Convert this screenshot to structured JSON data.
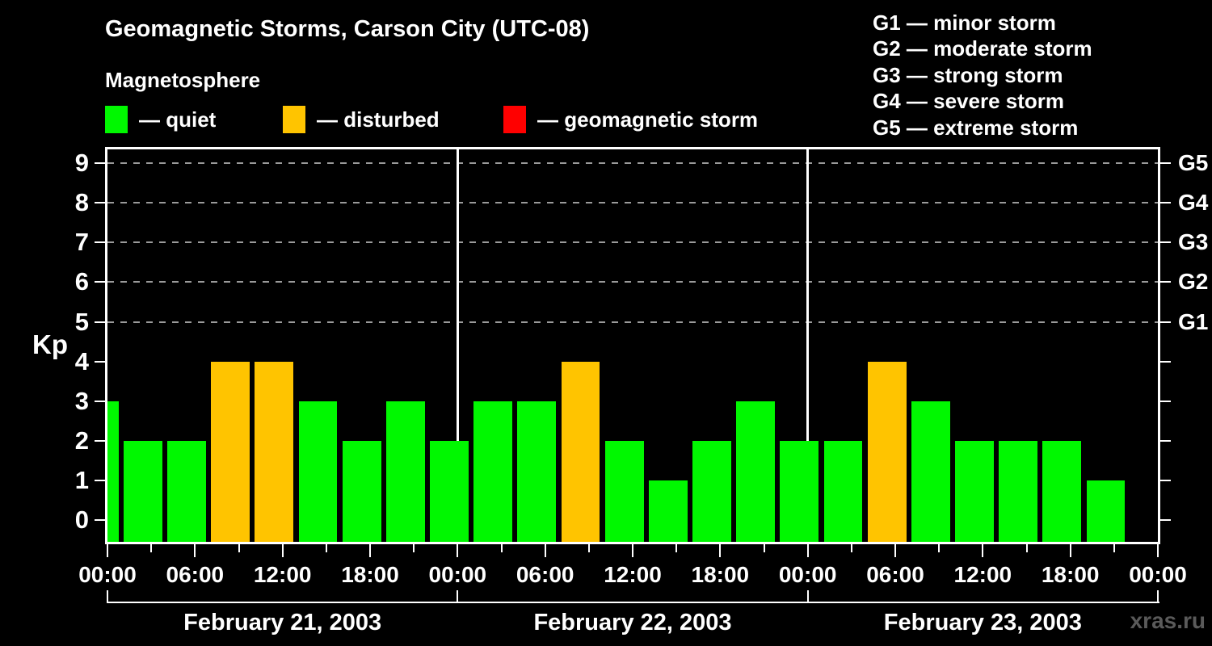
{
  "title": "Geomagnetic Storms, Carson City (UTC-08)",
  "subtitle": "Magnetosphere",
  "series_legend": [
    {
      "name": "quiet",
      "label": "— quiet",
      "color": "#00f800"
    },
    {
      "name": "disturbed",
      "label": "— disturbed",
      "color": "#ffc400"
    },
    {
      "name": "geomagnetic-storm",
      "label": "— geomagnetic storm",
      "color": "#ff0000"
    }
  ],
  "storm_scale_legend": [
    "G1 — minor storm",
    "G2 — moderate storm",
    "G3 — strong storm",
    "G4 — severe storm",
    "G5 — extreme storm"
  ],
  "watermark": "xras.ru",
  "chart_data": {
    "type": "bar",
    "title": "Geomagnetic Storms, Carson City (UTC-08)",
    "subtitle": "Magnetosphere",
    "ylabel": "Kp",
    "ylim": [
      -0.55,
      9.35
    ],
    "yticks": [
      0,
      1,
      2,
      3,
      4,
      5,
      6,
      7,
      8,
      9
    ],
    "grid_levels": [
      5,
      6,
      7,
      8,
      9
    ],
    "grid_style": "dashed",
    "right_axis": [
      {
        "level": 5,
        "label": "G1"
      },
      {
        "level": 6,
        "label": "G2"
      },
      {
        "level": 7,
        "label": "G3"
      },
      {
        "level": 8,
        "label": "G4"
      },
      {
        "level": 9,
        "label": "G5"
      }
    ],
    "total_hours": 72,
    "bar_interval_hours": 3,
    "x_minor_tick_hours": 3,
    "x_tick_label_interval_hours": 6,
    "x_tick_labels": [
      "00:00",
      "06:00",
      "12:00",
      "18:00",
      "00:00",
      "06:00",
      "12:00",
      "18:00",
      "00:00",
      "06:00",
      "12:00",
      "18:00",
      "00:00"
    ],
    "days": [
      "February 21, 2003",
      "February 22, 2003",
      "February 23, 2003"
    ],
    "kp_values": [
      3,
      2,
      2,
      4,
      4,
      3,
      2,
      3,
      2,
      3,
      3,
      4,
      2,
      1,
      2,
      3,
      2,
      2,
      4,
      3,
      2,
      2,
      2,
      1
    ],
    "color_rule": {
      "quiet_max": 3,
      "disturbed": 4,
      "storm_min": 5
    },
    "colors": {
      "quiet": "#00f800",
      "disturbed": "#ffc400",
      "storm": "#ff0000"
    },
    "legend_position": "top-left",
    "background": "#000000",
    "axis_color": "#ffffff",
    "grid_color": "#9a9a9a"
  }
}
